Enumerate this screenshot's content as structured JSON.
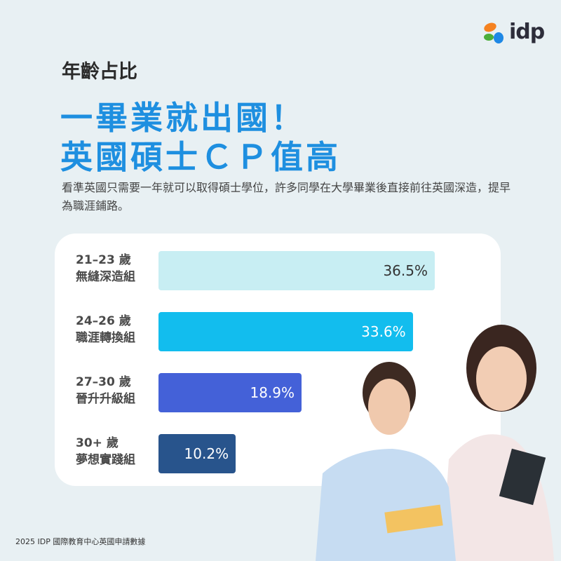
{
  "logo": {
    "text": "idp"
  },
  "header": {
    "subtitle": "年齡占比",
    "headline_1": "一畢業就出國！",
    "headline_2": "英國碩士ＣＰ值高",
    "description": "看準英國只需要一年就可以取得碩士學位，許多同學在大學畢業後直接前往英國深造，提早為職涯鋪路。"
  },
  "chart_data": {
    "type": "bar",
    "orientation": "horizontal",
    "categories": [
      {
        "age": "21–23 歲",
        "group": "無縫深造組"
      },
      {
        "age": "24–26 歲",
        "group": "職涯轉換組"
      },
      {
        "age": "27–30 歲",
        "group": "晉升升級組"
      },
      {
        "age": "30+ 歲",
        "group": "夢想實踐組"
      }
    ],
    "values": [
      36.5,
      33.6,
      18.9,
      10.2
    ],
    "labels": [
      "36.5%",
      "33.6%",
      "18.9%",
      "10.2%"
    ],
    "colors": [
      "#c8eef3",
      "#12bdee",
      "#4461d8",
      "#28548c"
    ],
    "label_colors": [
      "#333333",
      "#ffffff",
      "#ffffff",
      "#ffffff"
    ]
  },
  "footer": {
    "source": "2025 IDP 國際教育中心英國申請數據"
  }
}
